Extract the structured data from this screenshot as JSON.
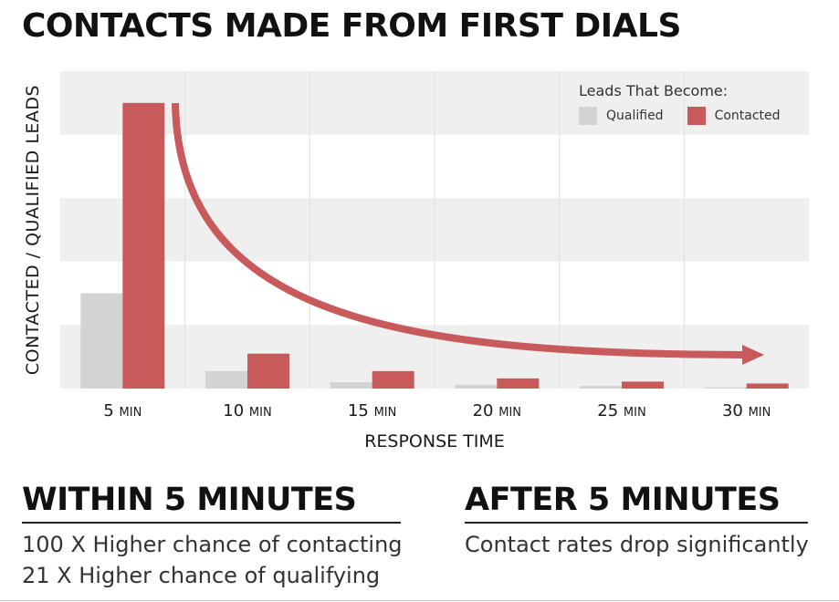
{
  "title": "CONTACTS MADE FROM FIRST DIALS",
  "colors": {
    "qualified": "#d3d3d3",
    "contacted": "#c85a5c",
    "band": "#efefef"
  },
  "chart_data": {
    "type": "bar",
    "title": "CONTACTS MADE FROM FIRST DIALS",
    "xlabel": "RESPONSE TIME",
    "ylabel": "CONTACTED / QUALIFIED LEADS",
    "categories": [
      {
        "num": "5",
        "unit": "MIN"
      },
      {
        "num": "10",
        "unit": "MIN"
      },
      {
        "num": "15",
        "unit": "MIN"
      },
      {
        "num": "20",
        "unit": "MIN"
      },
      {
        "num": "25",
        "unit": "MIN"
      },
      {
        "num": "30",
        "unit": "MIN"
      }
    ],
    "series": [
      {
        "name": "Qualified",
        "values": [
          30,
          5.5,
          2,
          1.2,
          0.8,
          0.4
        ]
      },
      {
        "name": "Contacted",
        "values": [
          90,
          11,
          5.5,
          3.2,
          2.2,
          1.6
        ]
      }
    ],
    "ylim": [
      0,
      100
    ],
    "y_axis_labels_shown": false,
    "grid": "alternating horizontal bands with vertical separators",
    "legend": {
      "title": "Leads That Become:",
      "position": "top-right"
    },
    "annotation": "decay arrow"
  },
  "panels": {
    "left": {
      "heading": "WITHIN 5 MINUTES",
      "lines": [
        "100 X Higher chance of contacting",
        "21 X Higher chance of qualifying"
      ]
    },
    "right": {
      "heading": "AFTER 5 MINUTES",
      "lines": [
        "Contact rates drop significantly"
      ]
    }
  }
}
